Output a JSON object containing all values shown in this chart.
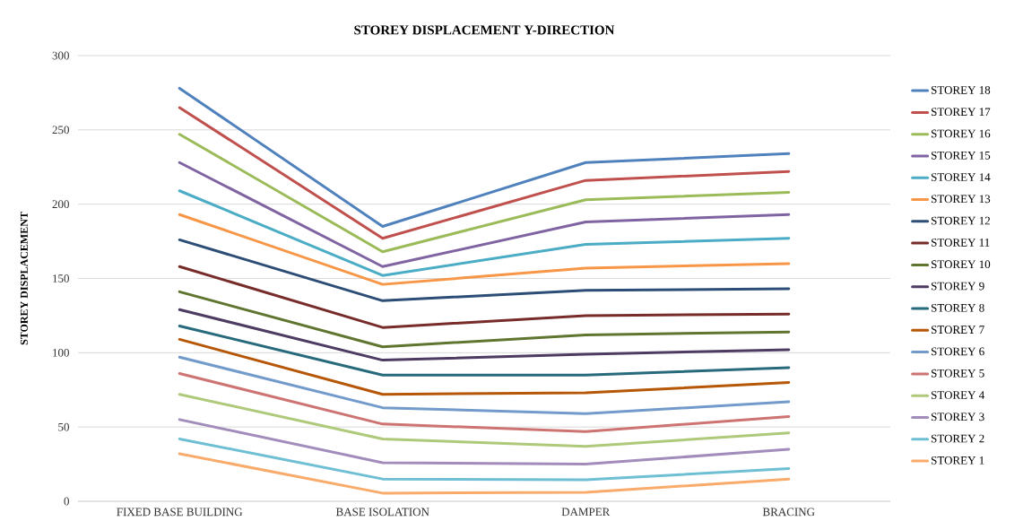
{
  "chart_data": {
    "type": "line",
    "title": "STOREY DISPLACEMENT Y-DIRECTION",
    "ylabel": "STOREY DISPLACEMENT",
    "categories": [
      "FIXED BASE BUILDING",
      "BASE ISOLATION",
      "DAMPER",
      "BRACING"
    ],
    "ylim": [
      0,
      300
    ],
    "yticks": [
      0,
      50,
      100,
      150,
      200,
      250,
      300
    ],
    "grid": "y",
    "legend": "right",
    "marker": "none",
    "line_style": "solid",
    "series": [
      {
        "name": "STOREY 18",
        "color": "#4f81bd",
        "values": [
          278,
          185,
          228,
          234
        ]
      },
      {
        "name": "STOREY 17",
        "color": "#c0504d",
        "values": [
          265,
          177,
          216,
          222
        ]
      },
      {
        "name": "STOREY 16",
        "color": "#9bbb59",
        "values": [
          247,
          168,
          203,
          208
        ]
      },
      {
        "name": "STOREY 15",
        "color": "#8064a2",
        "values": [
          228,
          158,
          188,
          193
        ]
      },
      {
        "name": "STOREY 14",
        "color": "#4bacc6",
        "values": [
          209,
          152,
          173,
          177
        ]
      },
      {
        "name": "STOREY 13",
        "color": "#f79646",
        "values": [
          193,
          146,
          157,
          160
        ]
      },
      {
        "name": "STOREY 12",
        "color": "#2c4d75",
        "values": [
          176,
          135,
          142,
          143
        ]
      },
      {
        "name": "STOREY 11",
        "color": "#772c2a",
        "values": [
          158,
          117,
          125,
          126
        ]
      },
      {
        "name": "STOREY 10",
        "color": "#5f7530",
        "values": [
          141,
          104,
          112,
          114
        ]
      },
      {
        "name": "STOREY 9",
        "color": "#4d3b62",
        "values": [
          129,
          95,
          99,
          102
        ]
      },
      {
        "name": "STOREY 8",
        "color": "#276a7c",
        "values": [
          118,
          85,
          85,
          90
        ]
      },
      {
        "name": "STOREY 7",
        "color": "#b65708",
        "values": [
          109,
          72,
          73,
          80
        ]
      },
      {
        "name": "STOREY 6",
        "color": "#729aca",
        "values": [
          97,
          63,
          59,
          67
        ]
      },
      {
        "name": "STOREY 5",
        "color": "#cd7371",
        "values": [
          86,
          52,
          47,
          57
        ]
      },
      {
        "name": "STOREY 4",
        "color": "#afc97a",
        "values": [
          72,
          42,
          37,
          46
        ]
      },
      {
        "name": "STOREY 3",
        "color": "#a18cbb",
        "values": [
          55,
          26,
          25,
          35
        ]
      },
      {
        "name": "STOREY 2",
        "color": "#6fbfd4",
        "values": [
          42,
          15,
          14.5,
          22
        ]
      },
      {
        "name": "STOREY 1",
        "color": "#f9ab6b",
        "values": [
          32,
          5.5,
          6,
          15
        ]
      }
    ]
  }
}
